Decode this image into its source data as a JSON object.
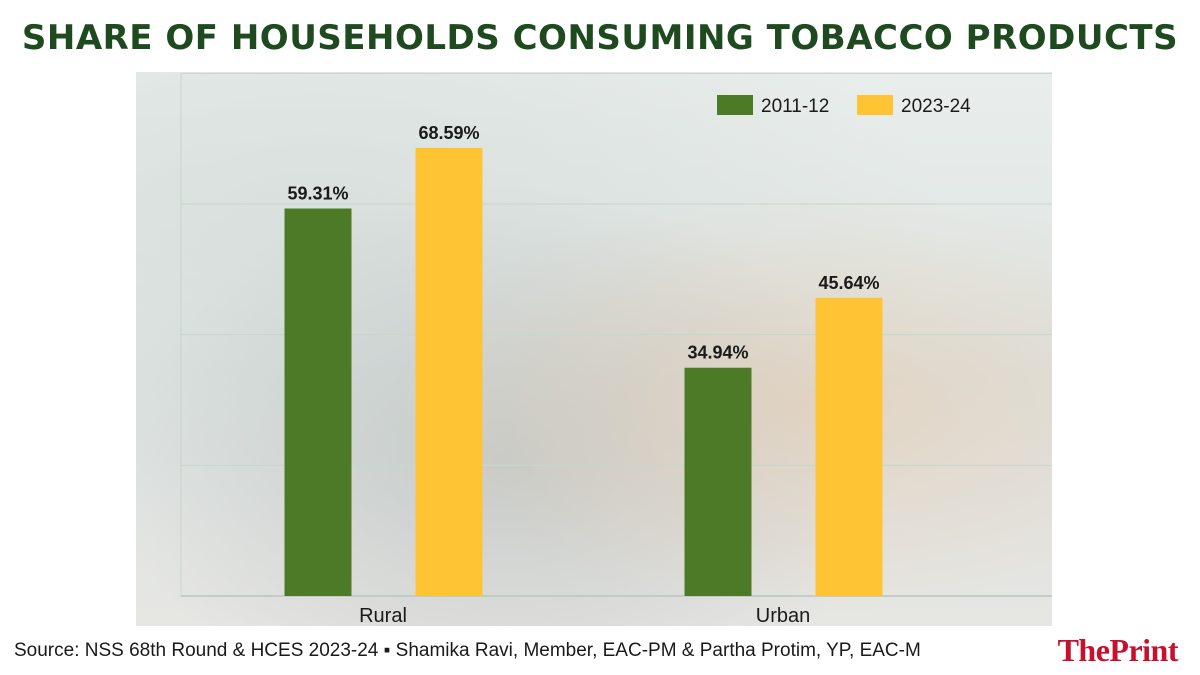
{
  "title": "SHARE OF HOUSEHOLDS CONSUMING TOBACCO PRODUCTS",
  "source": "Source: NSS 68th Round & HCES 2023-24 ▪ Shamika Ravi, Member, EAC-PM & Partha Protim, YP, EAC-M",
  "logo": "ThePrint",
  "chart_data": {
    "type": "bar",
    "categories": [
      "Rural",
      "Urban"
    ],
    "series": [
      {
        "name": "2011-12",
        "color": "#4d7a26",
        "values": [
          59.31,
          34.94
        ],
        "labels": [
          "59.31%",
          "34.94%"
        ]
      },
      {
        "name": "2023-24",
        "color": "#ffc433",
        "values": [
          68.59,
          45.64
        ],
        "labels": [
          "68.59%",
          "45.64%"
        ]
      }
    ],
    "ylim": [
      0,
      80
    ],
    "grid": true,
    "legend": "top-right"
  }
}
